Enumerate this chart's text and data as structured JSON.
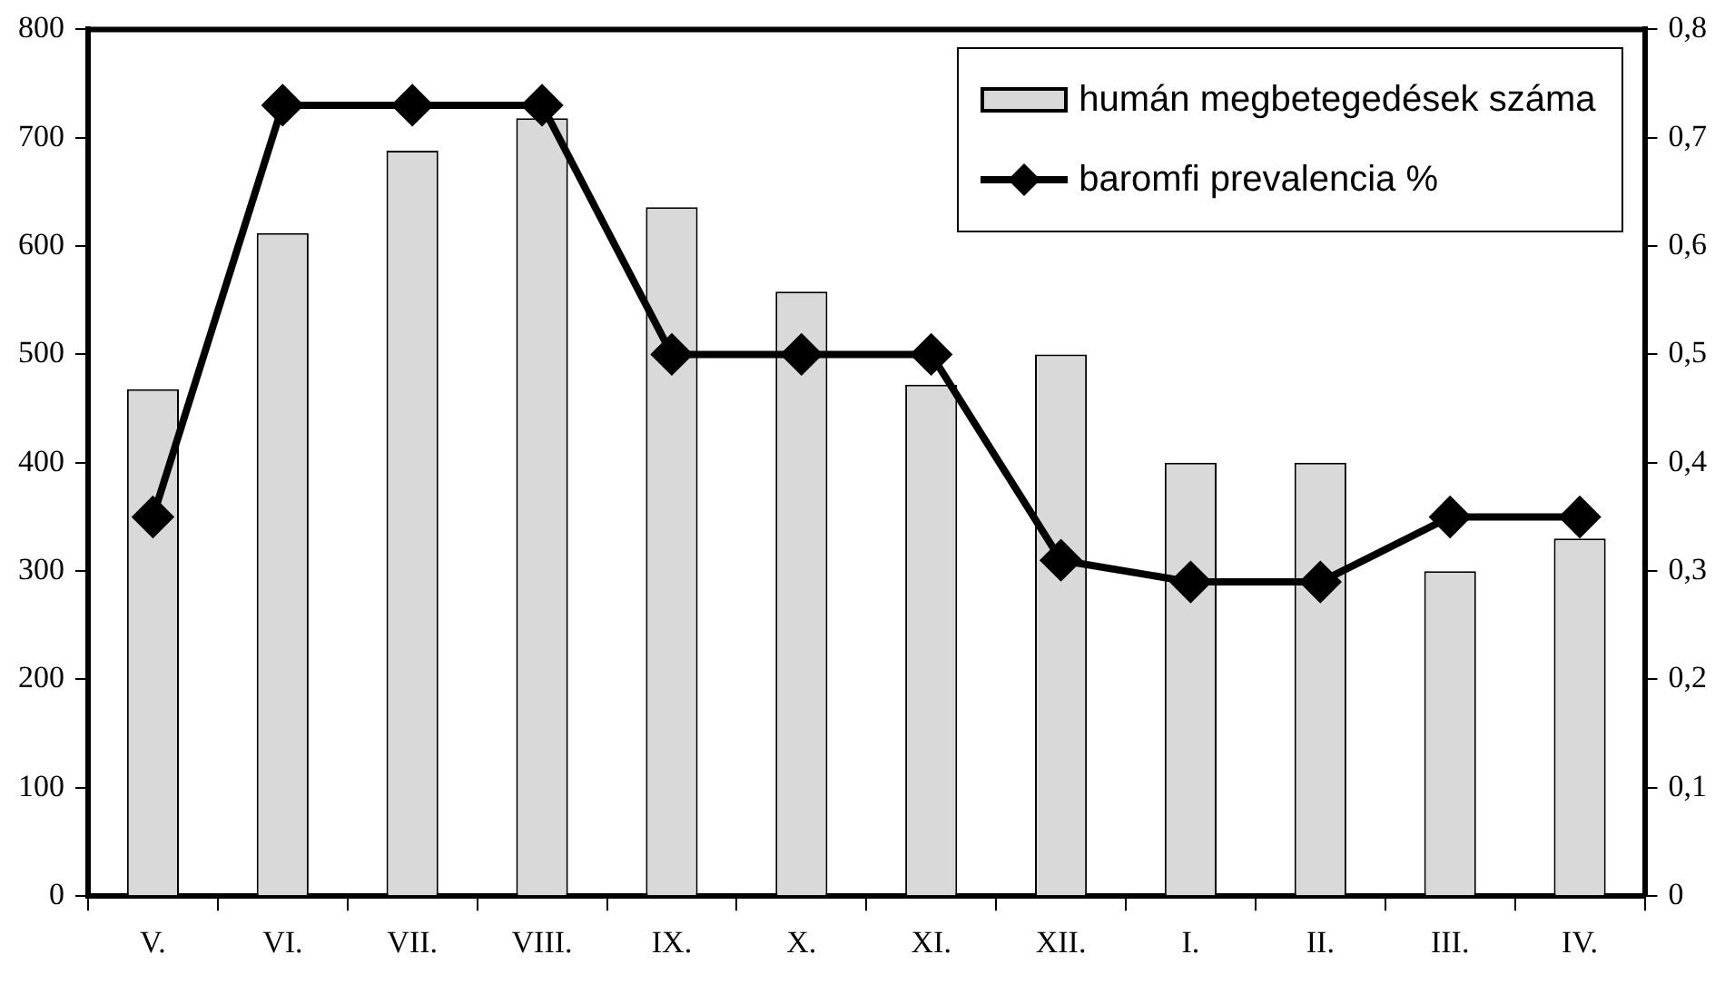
{
  "chart_data": {
    "type": "bar",
    "categories": [
      "V.",
      "VI.",
      "VII.",
      "VIII.",
      "IX.",
      "X.",
      "XI.",
      "XII.",
      "I.",
      "II.",
      "III.",
      "IV."
    ],
    "series": [
      {
        "name": "humán megbetegedések száma",
        "color": "#d9d9d9",
        "values": [
          468,
          612,
          688,
          718,
          636,
          558,
          472,
          500,
          400,
          400,
          300,
          330
        ]
      },
      {
        "name": "baromfi prevalencia %",
        "type": "line",
        "axis": "y2",
        "color": "#000000",
        "marker": "diamond",
        "values": [
          0.35,
          0.73,
          0.73,
          0.73,
          0.5,
          0.5,
          0.5,
          0.31,
          0.29,
          0.29,
          0.35,
          0.35
        ]
      }
    ],
    "ylim": [
      0,
      800
    ],
    "yticks": [
      0,
      100,
      200,
      300,
      400,
      500,
      600,
      700,
      800
    ],
    "y2lim": [
      0,
      0.8
    ],
    "y2ticks": [
      0,
      {
        "value": 0.1,
        "label": "0,1"
      },
      {
        "value": 0.2,
        "label": "0,2"
      },
      {
        "value": 0.3,
        "label": "0,3"
      },
      {
        "value": 0.4,
        "label": "0,4"
      },
      {
        "value": 0.5,
        "label": "0,5"
      },
      {
        "value": 0.6,
        "label": "0,6"
      },
      {
        "value": 0.7,
        "label": "0,7"
      },
      {
        "value": 0.8,
        "label": "0,8"
      }
    ],
    "grid": false,
    "legend": "top right"
  }
}
